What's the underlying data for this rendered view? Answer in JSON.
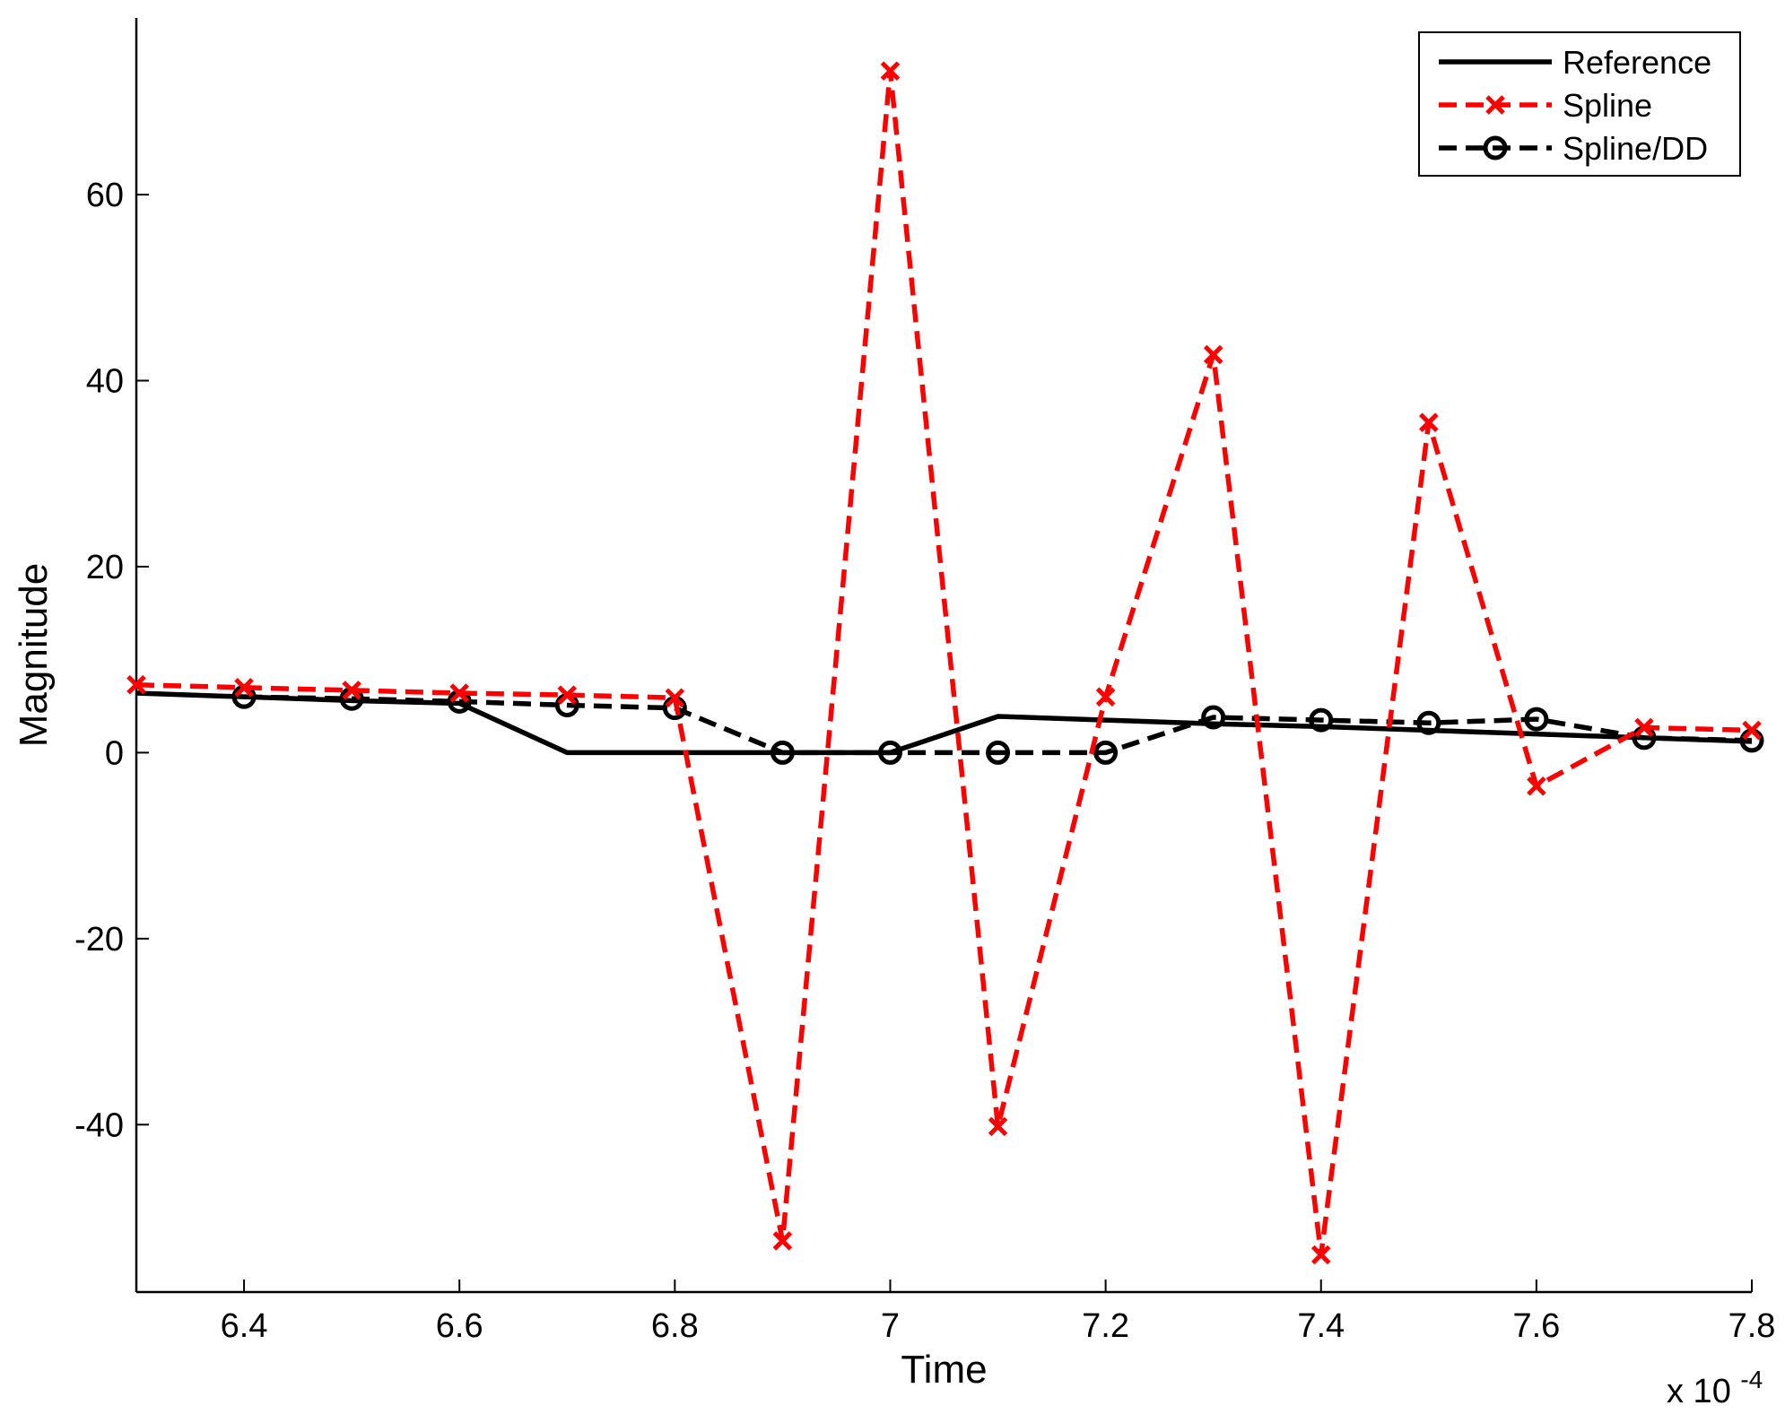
{
  "chart_data": {
    "type": "line",
    "xlabel": "Time",
    "ylabel": "Magnitude",
    "x_multiplier_label": "x 10",
    "x_multiplier_exponent": "-4",
    "xlim": [
      6.3,
      7.8
    ],
    "ylim": [
      -58,
      79
    ],
    "x_ticks": [
      6.4,
      6.6,
      6.8,
      7,
      7.2,
      7.4,
      7.6,
      7.8
    ],
    "x_tick_labels": [
      "6.4",
      "6.6",
      "6.8",
      "7",
      "7.2",
      "7.4",
      "7.6",
      "7.8"
    ],
    "y_ticks": [
      -40,
      -20,
      0,
      20,
      40,
      60
    ],
    "y_tick_labels": [
      "-40",
      "-20",
      "0",
      "20",
      "40",
      "60"
    ],
    "grid": false,
    "legend_position": "top-right",
    "series": [
      {
        "name": "Reference",
        "color": "#000000",
        "style": "solid",
        "marker": "none",
        "x": [
          6.3,
          6.4,
          6.5,
          6.6,
          6.7,
          6.8,
          6.9,
          7.0,
          7.1,
          7.2,
          7.3,
          7.4,
          7.5,
          7.6,
          7.7,
          7.8
        ],
        "y": [
          6.4,
          6.0,
          5.6,
          5.3,
          0,
          0,
          0,
          0,
          3.9,
          3.5,
          3.1,
          2.8,
          2.4,
          2.0,
          1.6,
          1.2
        ]
      },
      {
        "name": "Spline",
        "color": "#ff0000",
        "style": "dashed",
        "marker": "x",
        "x": [
          6.3,
          6.4,
          6.5,
          6.6,
          6.7,
          6.8,
          6.9,
          7.0,
          7.1,
          7.2,
          7.3,
          7.4,
          7.5,
          7.6,
          7.7,
          7.8
        ],
        "y": [
          7.3,
          7.0,
          6.7,
          6.4,
          6.2,
          5.9,
          -52.5,
          73.3,
          -40.2,
          6.0,
          42.8,
          -54.0,
          35.5,
          -3.6,
          2.7,
          2.4
        ]
      },
      {
        "name": "Spline/DD",
        "color": "#000000",
        "style": "dashed",
        "marker": "o",
        "x": [
          6.4,
          6.5,
          6.6,
          6.7,
          6.8,
          6.9,
          7.0,
          7.1,
          7.2,
          7.3,
          7.4,
          7.5,
          7.6,
          7.7,
          7.8
        ],
        "y": [
          6.0,
          5.8,
          5.5,
          5.1,
          4.8,
          0,
          0,
          0,
          0,
          3.8,
          3.5,
          3.2,
          3.6,
          1.6,
          1.3
        ]
      }
    ]
  }
}
